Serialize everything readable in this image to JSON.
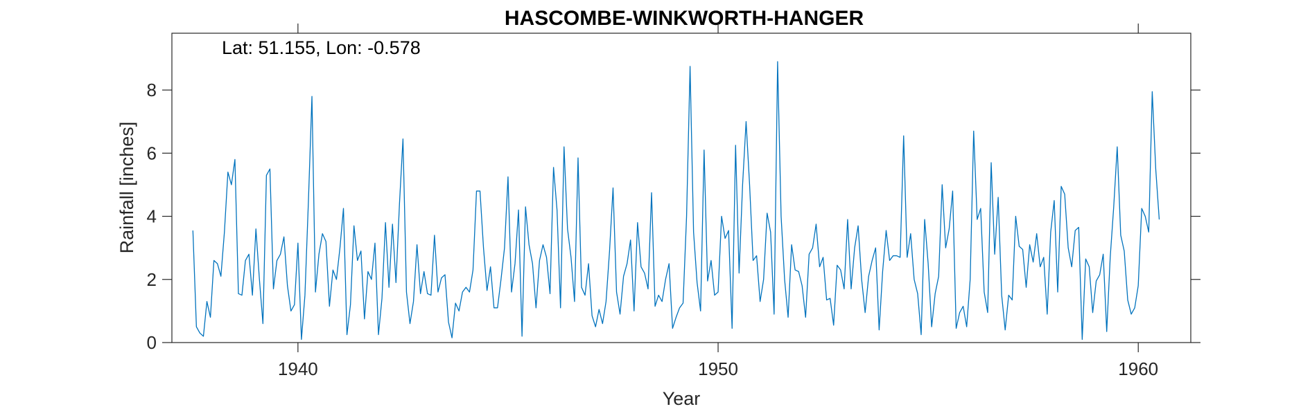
{
  "chart_data": {
    "type": "line",
    "title": "HASCOMBE-WINKWORTH-HANGER",
    "xlabel": "Year",
    "ylabel": "Rainfall [inches]",
    "annotation": "Lat: 51.155, Lon: -0.578",
    "xlim": [
      1937,
      1961.25
    ],
    "ylim": [
      0,
      9.8
    ],
    "xticks": [
      1940,
      1950,
      1960
    ],
    "yticks": [
      0,
      2,
      4,
      6,
      8
    ],
    "grid": false,
    "line_color": "#0072BD",
    "x_start": 1937.5,
    "x_step": 0.08333,
    "series": [
      {
        "values": [
          3.55,
          0.5,
          0.3,
          0.2,
          1.3,
          0.8,
          2.6,
          2.5,
          2.1,
          3.5,
          5.4,
          5.0,
          5.8,
          1.55,
          1.5,
          2.6,
          2.8,
          1.5,
          3.6,
          2.0,
          0.6,
          5.3,
          5.5,
          1.7,
          2.6,
          2.8,
          3.35,
          1.8,
          1.0,
          1.2,
          3.15,
          0.1,
          1.5,
          4.5,
          7.8,
          1.6,
          2.8,
          3.45,
          3.2,
          1.15,
          2.3,
          2.0,
          3.0,
          4.25,
          0.25,
          1.2,
          3.7,
          2.6,
          2.9,
          0.75,
          2.25,
          2.0,
          3.15,
          0.25,
          1.4,
          3.8,
          1.75,
          3.75,
          1.9,
          4.4,
          6.45,
          1.6,
          0.6,
          1.3,
          3.1,
          1.55,
          2.25,
          1.55,
          1.5,
          3.4,
          1.6,
          2.05,
          2.15,
          0.65,
          0.15,
          1.25,
          1.0,
          1.6,
          1.75,
          1.6,
          2.3,
          4.8,
          4.8,
          3.0,
          1.65,
          2.4,
          1.1,
          1.1,
          2.0,
          3.0,
          5.25,
          1.6,
          2.5,
          4.2,
          0.2,
          4.3,
          3.1,
          2.5,
          1.1,
          2.6,
          3.1,
          2.7,
          1.55,
          5.55,
          4.2,
          1.1,
          6.2,
          3.6,
          2.7,
          1.3,
          5.85,
          1.75,
          1.5,
          2.5,
          0.85,
          0.5,
          1.05,
          0.6,
          1.3,
          2.9,
          4.9,
          1.6,
          0.9,
          2.1,
          2.5,
          3.25,
          1.0,
          3.8,
          2.4,
          2.2,
          1.7,
          4.75,
          1.15,
          1.5,
          1.3,
          2.0,
          2.5,
          0.45,
          0.8,
          1.1,
          1.25,
          4.0,
          8.75,
          3.5,
          1.9,
          1.0,
          6.1,
          1.95,
          2.6,
          1.5,
          1.6,
          4.0,
          3.3,
          3.55,
          0.45,
          6.25,
          2.2,
          5.0,
          7.0,
          5.0,
          2.6,
          2.75,
          1.3,
          2.0,
          4.1,
          3.5,
          0.9,
          8.9,
          4.0,
          2.0,
          0.8,
          3.1,
          2.3,
          2.25,
          1.8,
          0.8,
          2.8,
          3.0,
          3.75,
          2.4,
          2.7,
          1.35,
          1.4,
          0.55,
          2.45,
          2.3,
          1.7,
          3.9,
          1.7,
          3.0,
          3.7,
          2.0,
          0.95,
          2.1,
          2.6,
          3.0,
          0.4,
          2.25,
          3.55,
          2.6,
          2.75,
          2.75,
          2.7,
          6.55,
          2.7,
          3.45,
          2.0,
          1.55,
          0.25,
          3.9,
          2.5,
          0.5,
          1.55,
          2.1,
          5.0,
          3.0,
          3.6,
          4.8,
          0.45,
          0.95,
          1.15,
          0.5,
          2.0,
          6.7,
          3.9,
          4.25,
          1.6,
          0.95,
          5.7,
          2.8,
          4.6,
          1.5,
          0.4,
          1.5,
          1.35,
          4.0,
          3.05,
          2.95,
          1.75,
          3.1,
          2.55,
          3.45,
          2.4,
          2.7,
          0.9,
          3.5,
          4.5,
          1.6,
          4.95,
          4.7,
          3.0,
          2.4,
          3.55,
          3.65,
          0.1,
          2.65,
          2.4,
          0.95,
          1.95,
          2.15,
          2.8,
          0.35,
          2.7,
          4.3,
          6.2,
          3.4,
          2.9,
          1.35,
          0.9,
          1.1,
          1.8,
          4.25,
          4.0,
          3.5,
          7.95,
          5.5,
          3.9
        ]
      }
    ]
  }
}
